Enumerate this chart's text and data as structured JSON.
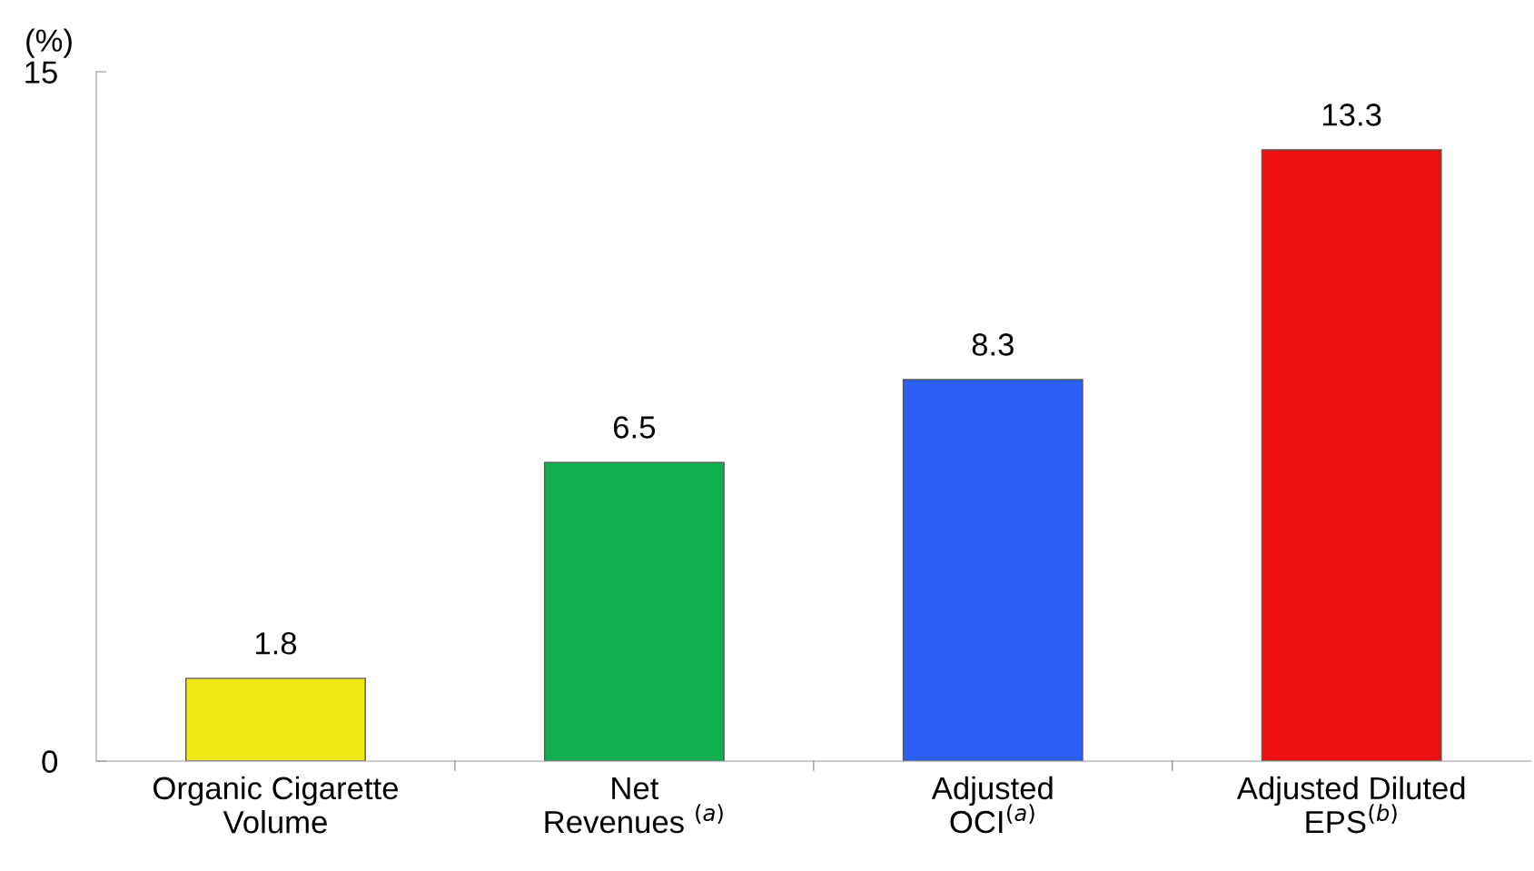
{
  "chart_data": {
    "type": "bar",
    "ylabel": "(%)",
    "categories": [
      "Organic Cigarette\nVolume",
      "Net\nRevenues $^{(a)}$",
      "Adjusted\nOCI$^{(a)}$",
      "Adjusted Diluted\nEPS$^{(b)}$"
    ],
    "values": [
      1.8,
      6.5,
      8.3,
      13.3
    ],
    "colors": [
      "#f2ea14",
      "#12b04e",
      "#2a5ef2",
      "#ee1111"
    ],
    "ylim": [
      0,
      15
    ],
    "yticks": [
      0,
      15
    ],
    "data_labels": true,
    "grid": false
  }
}
